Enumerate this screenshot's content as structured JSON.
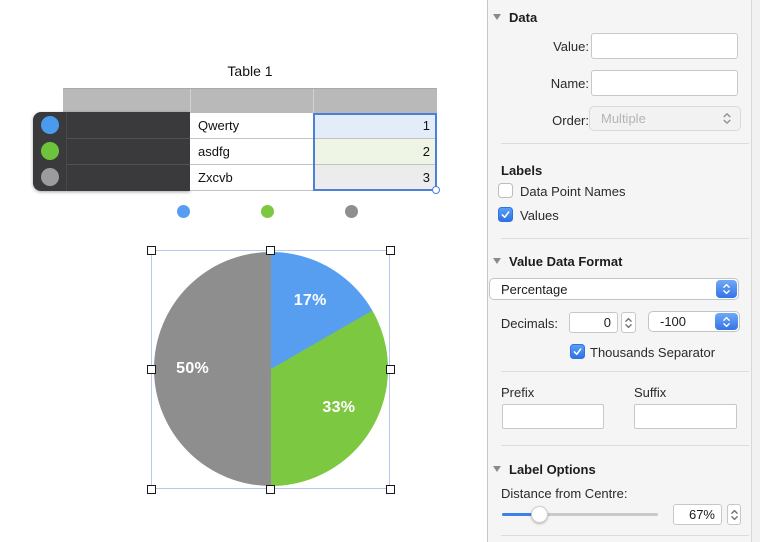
{
  "canvas": {
    "table": {
      "title": "Table 1",
      "rows": [
        {
          "name": "Qwerty",
          "value": "1",
          "color": "#4a9bee",
          "tint": "#e3edf9"
        },
        {
          "name": "asdfg",
          "value": "2",
          "color": "#6cc43c",
          "tint": "#eef5e4"
        },
        {
          "name": "Zxcvb",
          "value": "3",
          "color": "#9c9c9c",
          "tint": "#ececec"
        }
      ]
    }
  },
  "chart_data": {
    "type": "pie",
    "categories": [
      "Qwerty",
      "asdfg",
      "Zxcvb"
    ],
    "values": [
      1,
      2,
      3
    ],
    "labels": [
      "17%",
      "33%",
      "50%"
    ],
    "colors": [
      "#579ef1",
      "#7dc841",
      "#8e8e8e"
    ],
    "start_angle_deg": 0,
    "direction": "clockwise",
    "label_distance_pct": 67,
    "legend": "color dots only, no text"
  },
  "sidebar": {
    "data_section": {
      "title": "Data",
      "value_label": "Value:",
      "value_field": "",
      "name_label": "Name:",
      "name_field": "",
      "order_label": "Order:",
      "order_value": "Multiple"
    },
    "labels_section": {
      "title": "Labels",
      "checkbox_names": {
        "label": "Data Point Names",
        "checked": false
      },
      "checkbox_values": {
        "label": "Values",
        "checked": true
      }
    },
    "value_data_format": {
      "title": "Value Data Format",
      "format_value": "Percentage",
      "decimals_label": "Decimals:",
      "decimals_value": "0",
      "negative_format_value": "-100",
      "thousands": {
        "label": "Thousands Separator",
        "checked": true
      },
      "prefix_label": "Prefix",
      "prefix_value": "",
      "suffix_label": "Suffix",
      "suffix_value": ""
    },
    "label_options": {
      "title": "Label Options",
      "distance_label": "Distance from Centre:",
      "distance_value": "67%",
      "slider_pct": 24
    }
  }
}
